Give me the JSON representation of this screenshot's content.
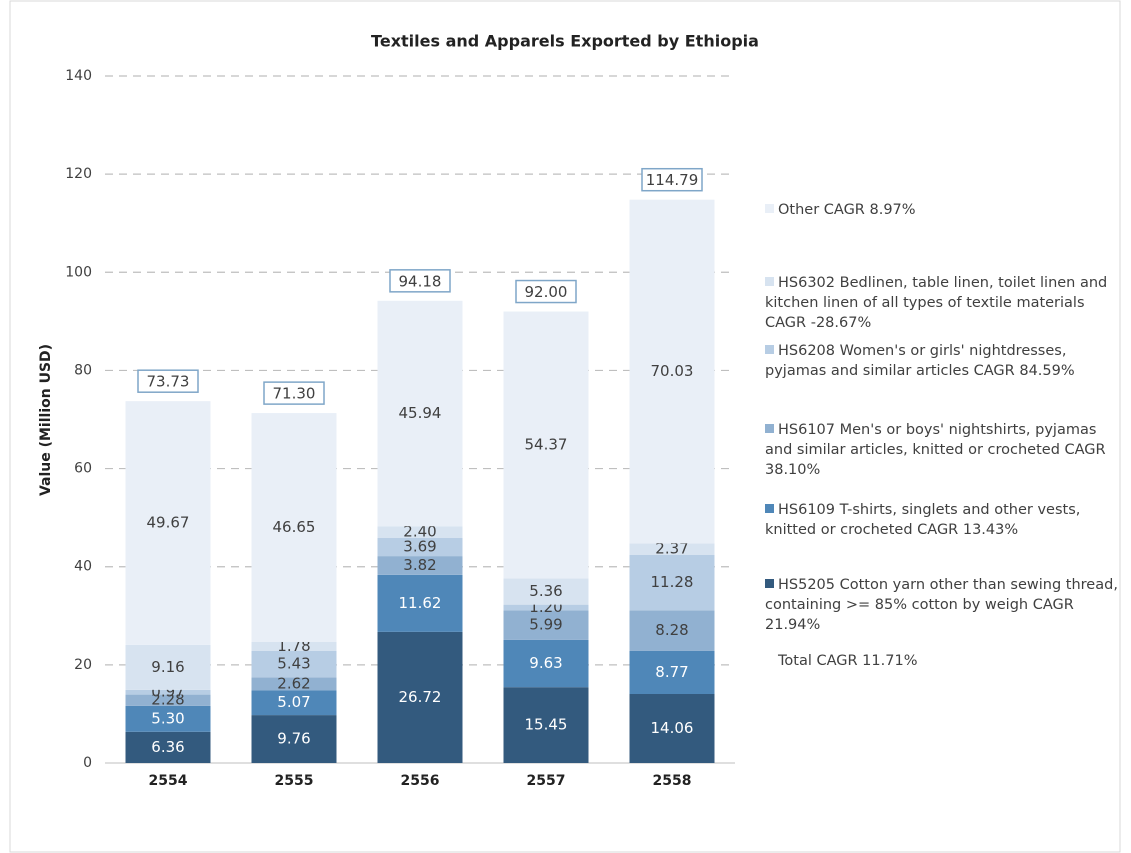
{
  "chart_data": {
    "type": "stacked_bar",
    "title": "Textiles and Apparels Exported by Ethiopia",
    "y_label": "Value (Million USD)",
    "categories": [
      "2554",
      "2555",
      "2556",
      "2557",
      "2558"
    ],
    "ylim": [
      0,
      140
    ],
    "yticks": [
      0,
      20,
      40,
      60,
      80,
      100,
      120,
      140
    ],
    "grid": true,
    "series": [
      {
        "name": "HS5205 Cotton yarn other than sewing thread, containing >= 85% cotton by weigh CAGR 21.94%",
        "color": "#335a7e",
        "values": [
          6.36,
          9.76,
          26.72,
          15.45,
          14.06
        ],
        "value_labels": [
          "6.36",
          "9.76",
          "26.72",
          "15.45",
          "14.06"
        ]
      },
      {
        "name": "HS6109 T-shirts, singlets and other vests, knitted or crocheted CAGR 13.43%",
        "color": "#4f87b8",
        "values": [
          5.3,
          5.07,
          11.62,
          9.63,
          8.77
        ],
        "value_labels": [
          "5.30",
          "5.07",
          "11.62",
          "9.63",
          "8.77"
        ]
      },
      {
        "name": "HS6107 Men's or boys' nightshirts, pyjamas and similar articles, knitted or crocheted CAGR 38.10%",
        "color": "#91b1d1",
        "values": [
          2.28,
          2.62,
          3.82,
          5.99,
          8.28
        ],
        "value_labels": [
          "2.28",
          "2.62",
          "3.82",
          "5.99",
          "8.28"
        ]
      },
      {
        "name": "HS6208 Women's or girls' nightdresses, pyjamas and similar articles CAGR 84.59%",
        "color": "#b7cde4",
        "values": [
          0.97,
          5.43,
          3.69,
          1.2,
          11.28
        ],
        "value_labels": [
          "0.97",
          "5.43",
          "3.69",
          "1.20",
          "11.28"
        ]
      },
      {
        "name": "HS6302 Bedlinen, table linen, toilet linen and kitchen linen of all types of textile materials CAGR -28.67%",
        "color": "#d7e3f0",
        "values": [
          9.16,
          1.78,
          2.4,
          5.36,
          2.37
        ],
        "value_labels": [
          "9.16",
          "1.78",
          "2.40",
          "5.36",
          "2.37"
        ]
      },
      {
        "name": "Other CAGR 8.97%",
        "color": "#e9eff7",
        "values": [
          49.67,
          46.65,
          45.94,
          54.37,
          70.03
        ],
        "value_labels": [
          "49.67",
          "46.65",
          "45.94",
          "54.37",
          "70.03"
        ]
      }
    ],
    "totals": [
      73.73,
      71.3,
      94.18,
      92,
      114.79
    ],
    "total_labels": [
      "73.73",
      "71.30",
      "94.18",
      "92.00",
      "114.79"
    ],
    "legend_note": "Total CAGR 11.71%"
  }
}
